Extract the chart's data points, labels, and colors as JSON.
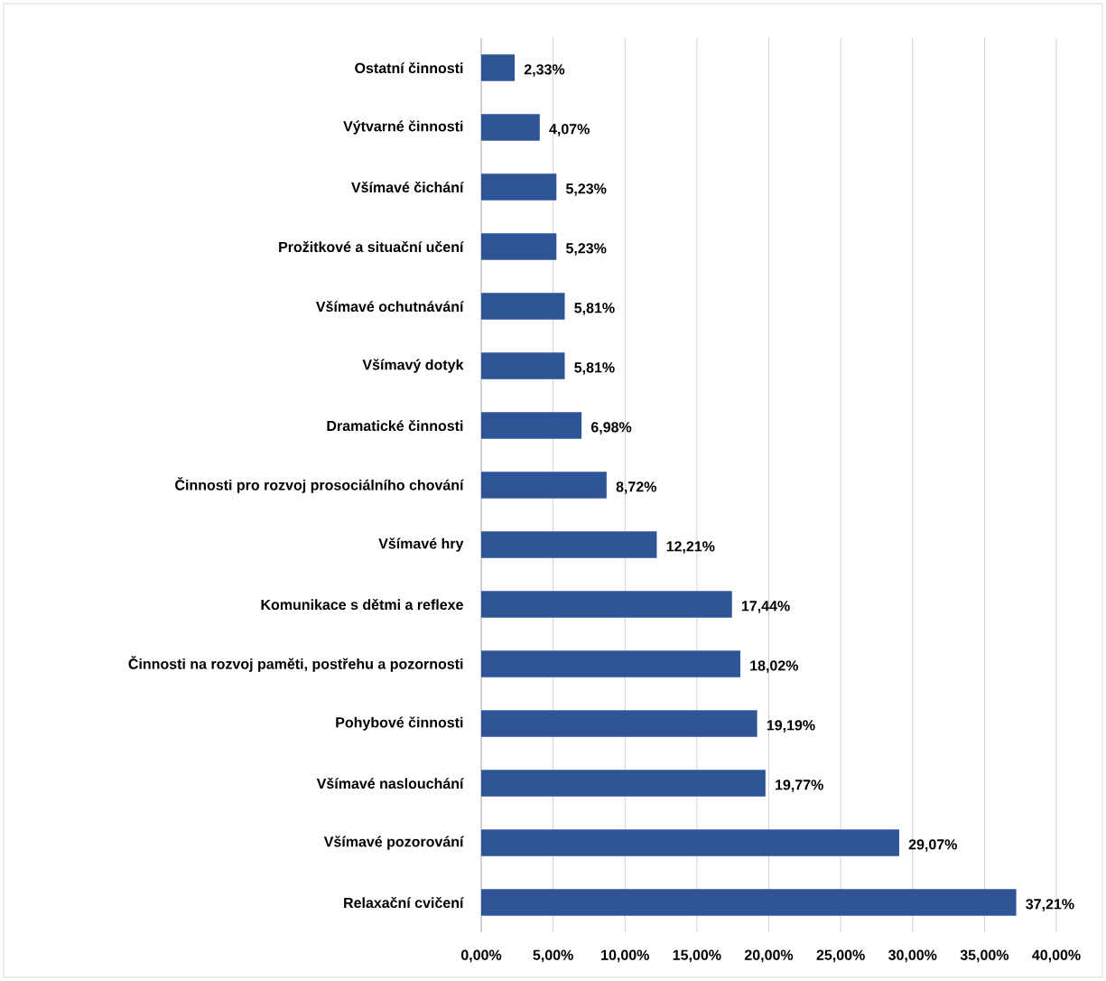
{
  "chart_data": {
    "type": "bar",
    "orientation": "horizontal",
    "color": "#2f5597",
    "grid": "x",
    "categories": [
      "Ostatní činnosti",
      "Výtvarné činnosti",
      "Všímavé čichání",
      "Prožitkové a situační učení",
      "Všímavé ochutnávání",
      "Všímavý dotyk",
      "Dramatické činnosti",
      "Činnosti pro rozvoj prosociálního chování",
      "Všímavé hry",
      "Komunikace s dětmi a reflexe",
      "Činnosti na rozvoj paměti, postřehu a pozornosti",
      "Pohybové činnosti",
      "Všímavé naslouchání",
      "Všímavé pozorování",
      "Relaxační cvičení"
    ],
    "values": [
      2.33,
      4.07,
      5.23,
      5.23,
      5.81,
      5.81,
      6.98,
      8.72,
      12.21,
      17.44,
      18.02,
      19.19,
      19.77,
      29.07,
      37.21
    ],
    "value_labels": [
      "2,33%",
      "4,07%",
      "5,23%",
      "5,23%",
      "5,81%",
      "5,81%",
      "6,98%",
      "8,72%",
      "12,21%",
      "17,44%",
      "18,02%",
      "19,19%",
      "19,77%",
      "29,07%",
      "37,21%"
    ],
    "xlim": [
      0,
      40
    ],
    "xticks": [
      {
        "value": 0,
        "label": "0,00%"
      },
      {
        "value": 5,
        "label": "5,00%"
      },
      {
        "value": 10,
        "label": "10,00%"
      },
      {
        "value": 15,
        "label": "15,00%"
      },
      {
        "value": 20,
        "label": "20,00%"
      },
      {
        "value": 25,
        "label": "25,00%"
      },
      {
        "value": 30,
        "label": "30,00%"
      },
      {
        "value": 35,
        "label": "35,00%"
      },
      {
        "value": 40,
        "label": "40,00%"
      }
    ]
  }
}
